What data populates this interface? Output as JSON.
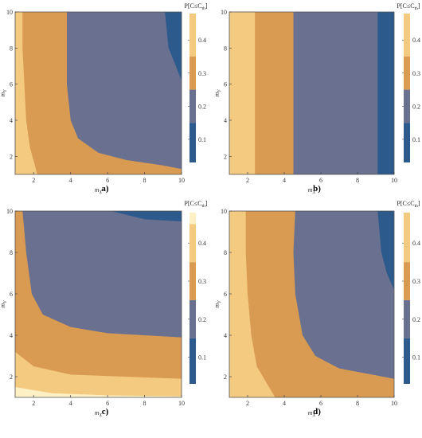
{
  "chart_data": [
    {
      "type": "contour",
      "panel_label": "a)",
      "xlabel": "m_X",
      "ylabel": "m_Y",
      "xlim": [
        1,
        10
      ],
      "ylim": [
        1,
        10
      ],
      "x_ticks": [
        "2",
        "4",
        "6",
        "8",
        "10"
      ],
      "y_ticks": [
        "2",
        "4",
        "6",
        "8",
        "10"
      ],
      "legend_title": "P[C≤C_th]",
      "legend_ticks": [
        "0.1",
        "0.2",
        "0.3",
        "0.4"
      ],
      "legend_range": [
        0.03,
        0.48
      ],
      "levels": [
        0.15,
        0.25,
        0.35
      ],
      "level_colors": [
        "#2d5a8c",
        "#6a7090",
        "#d99a52",
        "#f4c980"
      ],
      "boundaries": [
        {
          "level": 0.35,
          "points": [
            [
              1.4,
              10
            ],
            [
              1.4,
              8
            ],
            [
              1.5,
              6
            ],
            [
              1.6,
              4
            ],
            [
              1.8,
              2.5
            ],
            [
              2.2,
              1
            ]
          ]
        },
        {
          "level": 0.25,
          "points": [
            [
              3.8,
              10
            ],
            [
              3.8,
              8
            ],
            [
              3.8,
              6
            ],
            [
              4.0,
              4
            ],
            [
              4.4,
              3
            ],
            [
              5.5,
              2.2
            ],
            [
              7,
              1.8
            ],
            [
              9,
              1.5
            ],
            [
              10,
              1.3
            ]
          ]
        },
        {
          "level": 0.15,
          "points": [
            [
              9.1,
              10
            ],
            [
              9.3,
              8
            ],
            [
              9.7,
              7
            ],
            [
              10,
              6.2
            ]
          ]
        }
      ]
    },
    {
      "type": "contour",
      "panel_label": "b)",
      "xlabel": "m_X",
      "ylabel": "m_Y",
      "xlim": [
        1,
        10
      ],
      "ylim": [
        1,
        10
      ],
      "x_ticks": [
        "2",
        "4",
        "6",
        "8",
        "10"
      ],
      "y_ticks": [
        "2",
        "4",
        "6",
        "8",
        "10"
      ],
      "legend_title": "P[C≤C_th]",
      "legend_ticks": [
        "0.1",
        "0.2",
        "0.3",
        "0.4"
      ],
      "legend_range": [
        0.03,
        0.48
      ],
      "levels": [
        0.15,
        0.25,
        0.35
      ],
      "level_colors": [
        "#2d5a8c",
        "#6a7090",
        "#d99a52",
        "#f4c980"
      ],
      "boundaries": [
        {
          "level": 0.35,
          "points": [
            [
              2.4,
              10
            ],
            [
              2.4,
              1
            ]
          ]
        },
        {
          "level": 0.25,
          "points": [
            [
              4.5,
              10
            ],
            [
              4.5,
              1
            ]
          ]
        },
        {
          "level": 0.15,
          "points": [
            [
              9.1,
              10
            ],
            [
              9.1,
              1
            ]
          ]
        }
      ]
    },
    {
      "type": "contour",
      "panel_label": "c)",
      "xlabel": "m_X",
      "ylabel": "m_Y",
      "xlim": [
        1,
        10
      ],
      "ylim": [
        1,
        10
      ],
      "x_ticks": [
        "2",
        "4",
        "6",
        "8",
        "10"
      ],
      "y_ticks": [
        "2",
        "4",
        "6",
        "8",
        "10"
      ],
      "legend_title": "P[C≤C_th]",
      "legend_ticks": [
        "0.1",
        "0.2",
        "0.3",
        "0.4"
      ],
      "legend_range": [
        0.03,
        0.48
      ],
      "levels": [
        0.15,
        0.25,
        0.35,
        0.45
      ],
      "level_colors": [
        "#2d5a8c",
        "#6a7090",
        "#d99a52",
        "#f4c980",
        "#fdf0c4"
      ],
      "boundaries": [
        {
          "level": 0.45,
          "points": [
            [
              1,
              1.5
            ],
            [
              3,
              1.2
            ],
            [
              6,
              1.1
            ],
            [
              10,
              1.05
            ]
          ]
        },
        {
          "level": 0.35,
          "points": [
            [
              1,
              3.2
            ],
            [
              2,
              2.5
            ],
            [
              4,
              2.1
            ],
            [
              7,
              2.0
            ],
            [
              10,
              1.9
            ]
          ]
        },
        {
          "level": 0.25,
          "points": [
            [
              1.4,
              10
            ],
            [
              1.6,
              8
            ],
            [
              1.9,
              6
            ],
            [
              2.5,
              5
            ],
            [
              4,
              4.4
            ],
            [
              6,
              4.1
            ],
            [
              10,
              3.9
            ]
          ]
        },
        {
          "level": 0.15,
          "points": [
            [
              6.2,
              10
            ],
            [
              8,
              9.6
            ],
            [
              10,
              9.5
            ]
          ]
        }
      ]
    },
    {
      "type": "contour",
      "panel_label": "d)",
      "xlabel": "m_X",
      "ylabel": "m_Y",
      "xlim": [
        1,
        10
      ],
      "ylim": [
        1,
        10
      ],
      "x_ticks": [
        "2",
        "4",
        "6",
        "8",
        "10"
      ],
      "y_ticks": [
        "2",
        "4",
        "6",
        "8",
        "10"
      ],
      "legend_title": "P[C≤C_th]",
      "legend_ticks": [
        "0.1",
        "0.2",
        "0.3",
        "0.4"
      ],
      "legend_range": [
        0.03,
        0.48
      ],
      "levels": [
        0.15,
        0.25,
        0.35
      ],
      "level_colors": [
        "#2d5a8c",
        "#6a7090",
        "#d99a52",
        "#f4c980"
      ],
      "boundaries": [
        {
          "level": 0.35,
          "points": [
            [
              1.9,
              10
            ],
            [
              1.9,
              8
            ],
            [
              2.0,
              6
            ],
            [
              2.2,
              4
            ],
            [
              2.5,
              2.5
            ],
            [
              3.5,
              1
            ]
          ]
        },
        {
          "level": 0.25,
          "points": [
            [
              4.6,
              10
            ],
            [
              4.5,
              8
            ],
            [
              4.6,
              6
            ],
            [
              5.0,
              4
            ],
            [
              5.7,
              3.0
            ],
            [
              7,
              2.4
            ],
            [
              10,
              1.9
            ]
          ]
        },
        {
          "level": 0.15,
          "points": [
            [
              9.1,
              10
            ],
            [
              9.3,
              8
            ],
            [
              9.6,
              7
            ],
            [
              10,
              6.2
            ]
          ]
        }
      ]
    }
  ]
}
